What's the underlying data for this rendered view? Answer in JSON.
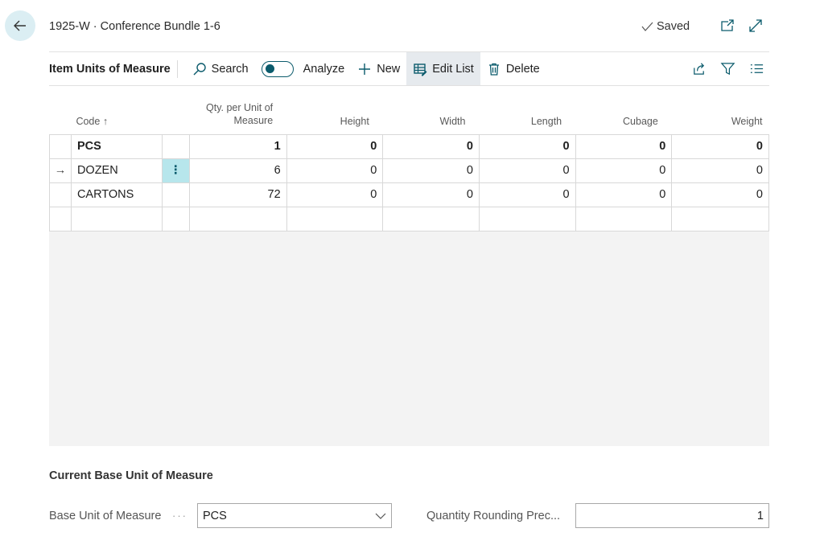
{
  "header": {
    "title": "1925-W · Conference Bundle 1-6",
    "saved_label": "Saved"
  },
  "toolbar": {
    "title": "Item Units of Measure",
    "search_label": "Search",
    "analyze_label": "Analyze",
    "new_label": "New",
    "edit_list_label": "Edit List",
    "delete_label": "Delete"
  },
  "table": {
    "columns": {
      "code": "Code",
      "code_sort": "↑",
      "qty": "Qty. per Unit of Measure",
      "height": "Height",
      "width": "Width",
      "length": "Length",
      "cubage": "Cubage",
      "weight": "Weight"
    },
    "rows": [
      {
        "code": "PCS",
        "qty": "1",
        "height": "0",
        "width": "0",
        "length": "0",
        "cubage": "0",
        "weight": "0"
      },
      {
        "code": "DOZEN",
        "qty": "6",
        "height": "0",
        "width": "0",
        "length": "0",
        "cubage": "0",
        "weight": "0"
      },
      {
        "code": "CARTONS",
        "qty": "72",
        "height": "0",
        "width": "0",
        "length": "0",
        "cubage": "0",
        "weight": "0"
      }
    ],
    "row_menu_glyph": "⋮",
    "current_row_glyph": "→"
  },
  "base_section": {
    "title": "Current Base Unit of Measure",
    "base_label": "Base Unit of Measure",
    "base_value": "PCS",
    "rounding_label": "Quantity Rounding Prec...",
    "rounding_value": "1"
  },
  "colors": {
    "accent": "#0b5b6c",
    "selected_cell": "#b7e6ec",
    "back_button": "#dbeef3"
  }
}
